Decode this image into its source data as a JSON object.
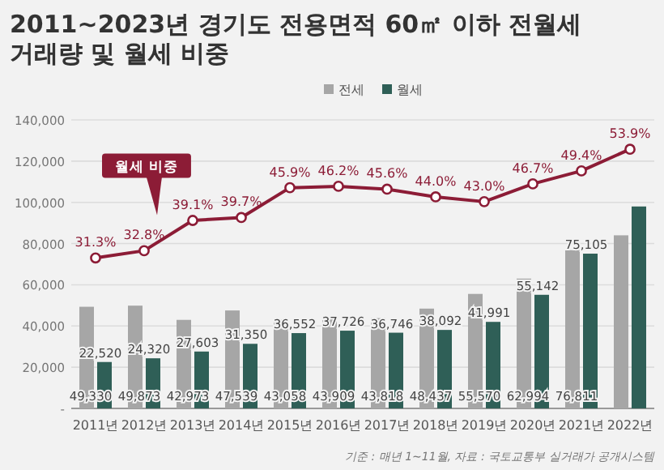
{
  "chart_data": {
    "type": "bar",
    "title": "2011~2023년 경기도 전용면적 60㎡ 이하 전월세 거래량 및 월세 비중",
    "categories": [
      "2011년",
      "2012년",
      "2013년",
      "2014년",
      "2015년",
      "2016년",
      "2017년",
      "2018년",
      "2019년",
      "2020년",
      "2021년",
      "2022년"
    ],
    "series": [
      {
        "name": "전세",
        "color": "#a6a6a6",
        "values": [
          49330,
          49873,
          42973,
          47539,
          43058,
          43909,
          43818,
          48437,
          55570,
          62994,
          76811,
          84000
        ],
        "value_labels": [
          "49,330",
          "49,873",
          "42,973",
          "47,539",
          "43,058",
          "43,909",
          "43,818",
          "48,437",
          "55,570",
          "62,994",
          "76,811",
          null
        ]
      },
      {
        "name": "월세",
        "color": "#2f5f57",
        "values": [
          22520,
          24320,
          27603,
          31350,
          36552,
          37726,
          36746,
          38092,
          41991,
          55142,
          75105,
          98000
        ],
        "value_labels": [
          "22,520",
          "24,320",
          "27,603",
          "31,350",
          "36,552",
          "37,726",
          "36,746",
          "38,092",
          "41,991",
          "55,142",
          "75,105",
          null
        ]
      },
      {
        "name": "월세 비중",
        "type": "line",
        "axis": "y2",
        "color": "#8c1c36",
        "marker": "circle",
        "values": [
          31.3,
          32.8,
          39.1,
          39.7,
          45.9,
          46.2,
          45.6,
          44.0,
          43.0,
          46.7,
          49.4,
          53.9
        ],
        "value_labels": [
          "31.3%",
          "32.8%",
          "39.1%",
          "39.7%",
          "45.9%",
          "46.2%",
          "45.6%",
          "44.0%",
          "43.0%",
          "46.7%",
          "49.4%",
          "53.9%"
        ]
      }
    ],
    "ylim": [
      0,
      140000
    ],
    "yticks": [
      {
        "value": 0,
        "label": "-"
      },
      {
        "value": 20000,
        "label": "20,000"
      },
      {
        "value": 40000,
        "label": "40,000"
      },
      {
        "value": 60000,
        "label": "60,000"
      },
      {
        "value": 80000,
        "label": "80,000"
      },
      {
        "value": 100000,
        "label": "100,000"
      },
      {
        "value": 120000,
        "label": "120,000"
      },
      {
        "value": 140000,
        "label": "140,000"
      }
    ],
    "y2lim": [
      0,
      60
    ],
    "grid": "y",
    "legend": "top",
    "annotations": [
      "기준 : 매년 1~11월, 자료 : 국토교통부 실거래가 공개시스템"
    ]
  }
}
